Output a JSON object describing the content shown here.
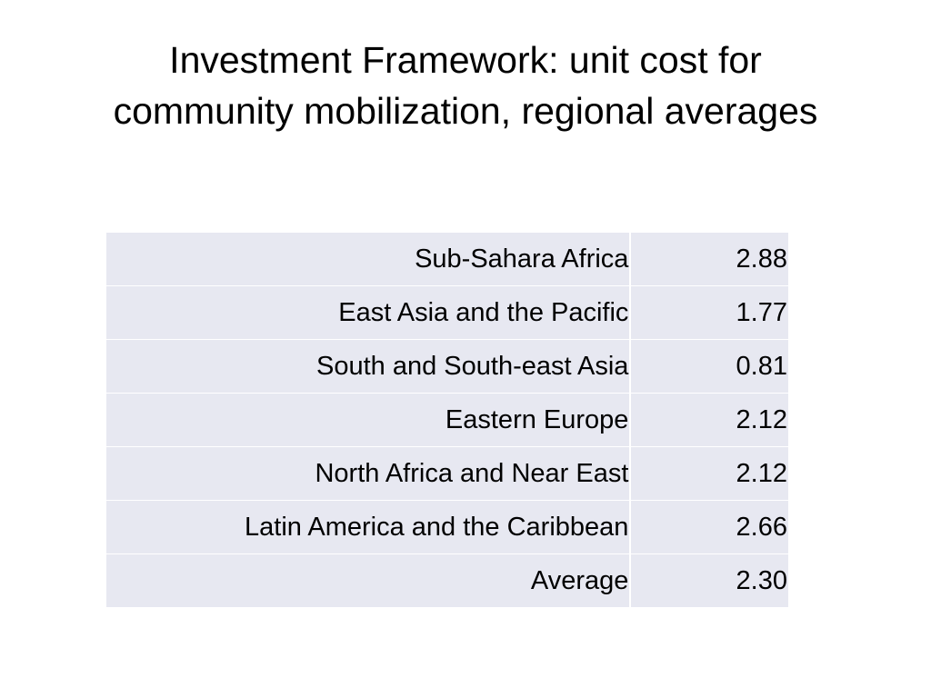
{
  "slide": {
    "title_line1": "Investment Framework: unit cost for",
    "title_line2": "community mobilization, regional averages"
  },
  "table": {
    "rows": [
      {
        "region": "Sub-Sahara Africa",
        "value": "2.88"
      },
      {
        "region": "East Asia and the Pacific",
        "value": "1.77"
      },
      {
        "region": "South and South-east Asia",
        "value": "0.81"
      },
      {
        "region": "Eastern Europe",
        "value": "2.12"
      },
      {
        "region": "North Africa and Near East",
        "value": "2.12"
      },
      {
        "region": "Latin America and the Caribbean",
        "value": "2.66"
      },
      {
        "region": "Average",
        "value": "2.30"
      }
    ]
  },
  "colors": {
    "cell_background": "#e7e8f1",
    "text": "#000000",
    "background": "#ffffff"
  }
}
